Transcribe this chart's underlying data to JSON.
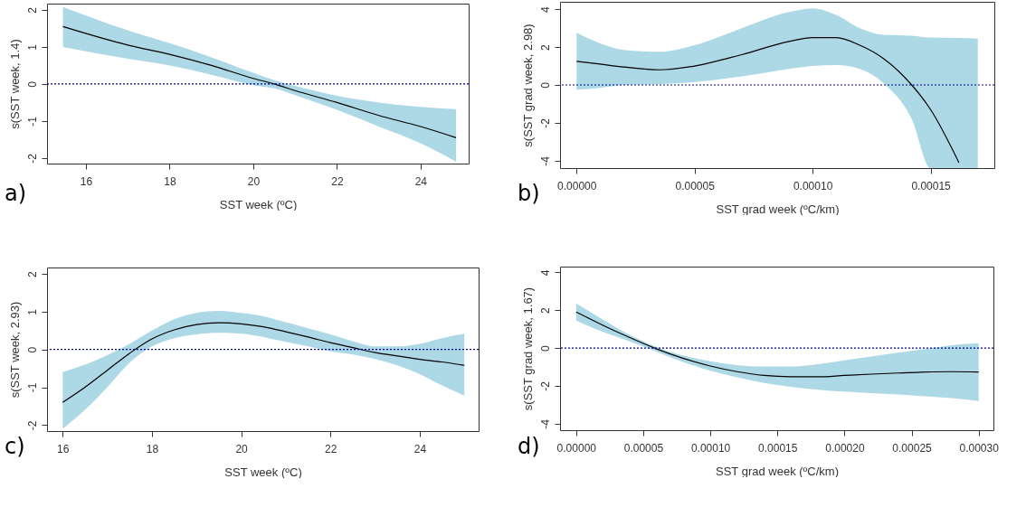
{
  "chart_data": [
    {
      "type": "line",
      "xlabel": "SST week (ºC)",
      "ylabel": "s(SST week, 1.4)",
      "annotations": [
        "a)"
      ],
      "grid": false,
      "xlim": [
        15.07,
        25.15
      ],
      "ylim": [
        -2.15,
        2.17
      ],
      "xticks": [
        16,
        18,
        20,
        22,
        24
      ],
      "yticks": [
        -2,
        -1,
        0,
        1,
        2
      ],
      "x": [
        15.45,
        17,
        18,
        19,
        20,
        20.5,
        21,
        22,
        23,
        24,
        24.85
      ],
      "series": [
        {
          "color": "#000000",
          "values": [
            1.55,
            1.05,
            0.8,
            0.5,
            0.15,
            0,
            -0.18,
            -0.5,
            -0.85,
            -1.15,
            -1.45
          ],
          "upper": [
            2.08,
            1.45,
            1.1,
            0.72,
            0.3,
            0.1,
            -0.05,
            -0.32,
            -0.5,
            -0.62,
            -0.68
          ],
          "lower": [
            1.0,
            0.68,
            0.5,
            0.25,
            -0.03,
            -0.12,
            -0.3,
            -0.7,
            -1.15,
            -1.6,
            -2.1
          ]
        }
      ],
      "ref_lines": [
        {
          "axis": "y",
          "value": 0,
          "color": "#00008b",
          "line_style": "dotted"
        }
      ]
    },
    {
      "type": "line",
      "xlabel": "SST grad week (ºC/km)",
      "ylabel": "s(SST grad week, 2.98)",
      "annotations": [
        "b)"
      ],
      "grid": false,
      "xlim": [
        -7e-06,
        0.000177
      ],
      "ylim": [
        -4.39,
        4.39
      ],
      "xticks": [
        {
          "value": 0,
          "label": "0.00000"
        },
        {
          "value": 5e-05,
          "label": "0.00005"
        },
        {
          "value": 0.0001,
          "label": "0.00010"
        },
        {
          "value": 0.00015,
          "label": "0.00015"
        }
      ],
      "yticks": [
        -4,
        -2,
        0,
        2,
        4
      ],
      "x": [
        0,
        1e-05,
        2e-05,
        3.5e-05,
        5e-05,
        7e-05,
        9e-05,
        0.0001,
        0.00011,
        0.00012,
        0.00013,
        0.000142,
        0.00015,
        0.000162,
        0.00017
      ],
      "series": [
        {
          "color": "#000000",
          "values": [
            1.25,
            1.1,
            0.95,
            0.8,
            1.0,
            1.6,
            2.3,
            2.5,
            2.5,
            2.1,
            1.4,
            0,
            -1.3,
            -4.1,
            null
          ],
          "upper": [
            2.75,
            2.2,
            1.85,
            1.75,
            2.1,
            3.0,
            3.85,
            4.05,
            3.7,
            3.0,
            2.65,
            2.6,
            2.5,
            2.48,
            2.45
          ],
          "lower": [
            -0.25,
            -0.15,
            0.0,
            0.05,
            0.15,
            0.45,
            0.85,
            1.0,
            1.05,
            0.85,
            0.1,
            -1.8,
            -4.39,
            -4.39,
            -4.39
          ]
        }
      ],
      "ref_lines": [
        {
          "axis": "y",
          "value": 0,
          "color": "#00008b",
          "line_style": "dotted"
        }
      ]
    },
    {
      "type": "line",
      "xlabel": "SST week (ºC)",
      "ylabel": "s(SST week, 2.93)",
      "annotations": [
        "c)"
      ],
      "grid": false,
      "xlim": [
        15.65,
        25.32
      ],
      "ylim": [
        -2.16,
        2.17
      ],
      "xticks": [
        16,
        18,
        20,
        22,
        24
      ],
      "yticks": [
        -2,
        -1,
        0,
        1,
        2
      ],
      "x": [
        16,
        16.5,
        17,
        17.5,
        18,
        18.5,
        19,
        19.5,
        20,
        20.5,
        21,
        21.5,
        22,
        22.5,
        23,
        23.5,
        24,
        24.5,
        25
      ],
      "series": [
        {
          "color": "#000000",
          "values": [
            -1.4,
            -1.0,
            -0.55,
            -0.1,
            0.28,
            0.52,
            0.66,
            0.71,
            0.68,
            0.6,
            0.47,
            0.33,
            0.18,
            0.05,
            -0.08,
            -0.17,
            -0.26,
            -0.33,
            -0.42
          ],
          "upper": [
            -0.6,
            -0.4,
            -0.15,
            0.15,
            0.5,
            0.8,
            0.97,
            1.02,
            0.97,
            0.88,
            0.72,
            0.56,
            0.4,
            0.22,
            0.08,
            0.08,
            0.15,
            0.3,
            0.42
          ],
          "lower": [
            -2.1,
            -1.6,
            -1.0,
            -0.35,
            0.08,
            0.3,
            0.4,
            0.44,
            0.42,
            0.33,
            0.2,
            0.08,
            -0.05,
            -0.13,
            -0.25,
            -0.42,
            -0.65,
            -0.95,
            -1.22
          ]
        }
      ],
      "ref_lines": [
        {
          "axis": "y",
          "value": 0,
          "color": "#00008b",
          "line_style": "dotted"
        }
      ]
    },
    {
      "type": "line",
      "xlabel": "SST grad week (ºC/km)",
      "ylabel": "s(SST grad week, 1.67)",
      "annotations": [
        "d)"
      ],
      "grid": false,
      "xlim": [
        -1.2e-05,
        0.000311
      ],
      "ylim": [
        -4.34,
        4.3
      ],
      "xticks": [
        {
          "value": 0,
          "label": "0.00000"
        },
        {
          "value": 5e-05,
          "label": "0.00005"
        },
        {
          "value": 0.0001,
          "label": "0.00010"
        },
        {
          "value": 0.00015,
          "label": "0.00015"
        },
        {
          "value": 0.0002,
          "label": "0.00020"
        },
        {
          "value": 0.00025,
          "label": "0.00025"
        },
        {
          "value": 0.0003,
          "label": "0.00030"
        }
      ],
      "yticks": [
        -4,
        -2,
        0,
        2,
        4
      ],
      "x": [
        0,
        2e-05,
        4e-05,
        6e-05,
        8e-05,
        0.0001,
        0.00012,
        0.00014,
        0.00016,
        0.00018,
        0.0002,
        0.00022,
        0.00024,
        0.00026,
        0.00028,
        0.0003
      ],
      "series": [
        {
          "color": "#000000",
          "values": [
            1.9,
            1.2,
            0.55,
            -0.05,
            -0.55,
            -0.95,
            -1.25,
            -1.45,
            -1.52,
            -1.52,
            -1.45,
            -1.38,
            -1.32,
            -1.27,
            -1.25,
            -1.27
          ],
          "upper": [
            2.35,
            1.5,
            0.7,
            0.05,
            -0.4,
            -0.7,
            -0.9,
            -0.98,
            -0.98,
            -0.85,
            -0.65,
            -0.45,
            -0.25,
            -0.05,
            0.15,
            0.25
          ],
          "lower": [
            1.45,
            0.85,
            0.35,
            -0.2,
            -0.75,
            -1.2,
            -1.55,
            -1.85,
            -2.05,
            -2.2,
            -2.3,
            -2.38,
            -2.45,
            -2.55,
            -2.65,
            -2.8
          ]
        }
      ],
      "ref_lines": [
        {
          "axis": "y",
          "value": 0,
          "color": "#00008b",
          "line_style": "dotted"
        }
      ]
    }
  ]
}
